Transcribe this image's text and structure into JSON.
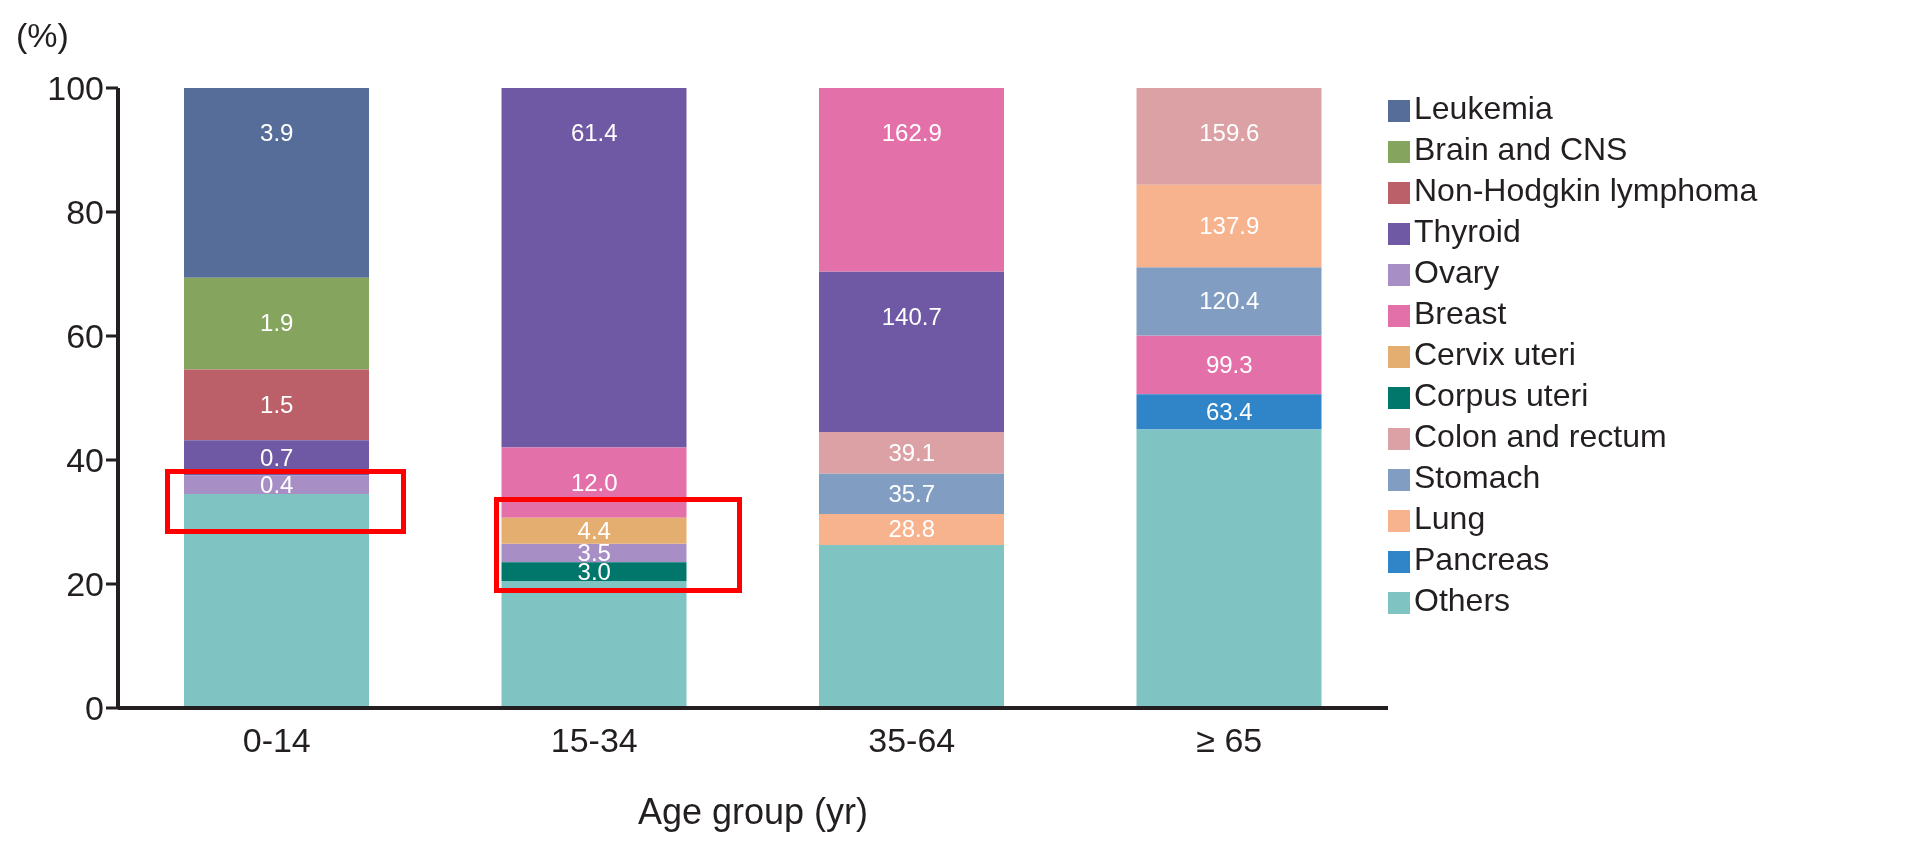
{
  "chart_data": {
    "type": "bar",
    "ylabel": "(%)",
    "xlabel": "Age group (yr)",
    "categories": [
      "0-14",
      "15-34",
      "35-64",
      "≥ 65"
    ],
    "ylim": [
      0,
      100
    ],
    "yticks": [
      0,
      20,
      40,
      60,
      80,
      100
    ],
    "grid": false,
    "legend": "right",
    "series": [
      {
        "name": "Leukemia",
        "color": "#566d9a",
        "values": [
          30.6,
          null,
          null,
          null
        ],
        "base": [
          69.4,
          null,
          null,
          null
        ]
      },
      {
        "name": "Brain and CNS",
        "color": "#85a55e",
        "values": [
          14.8,
          null,
          null,
          null
        ],
        "base": [
          54.6,
          null,
          null,
          null
        ]
      },
      {
        "name": "Non-Hodgkin lymphoma",
        "color": "#bb6068",
        "values": [
          11.4,
          null,
          null,
          null
        ],
        "base": [
          43.2,
          null,
          null,
          null
        ]
      },
      {
        "name": "Thyroid",
        "color": "#7059a4",
        "values": [
          5.7,
          58.0,
          25.9,
          null
        ],
        "base": [
          37.5,
          42.0,
          44.5,
          null
        ]
      },
      {
        "name": "Ovary",
        "color": "#a78fc5",
        "values": [
          3.0,
          3.0,
          null,
          null
        ],
        "base": [
          34.5,
          23.5,
          null,
          null
        ]
      },
      {
        "name": "Breast",
        "color": "#e470aa",
        "values": [
          null,
          11.3,
          29.6,
          9.5
        ],
        "base": [
          null,
          30.7,
          70.4,
          50.6
        ]
      },
      {
        "name": "Cervix uteri",
        "color": "#e4ae70",
        "values": [
          null,
          4.2,
          null,
          null
        ],
        "base": [
          null,
          26.5,
          null,
          null
        ]
      },
      {
        "name": "Corpus uteri",
        "color": "#00776a",
        "values": [
          null,
          3.0,
          null,
          null
        ],
        "base": [
          null,
          20.5,
          null,
          null
        ]
      },
      {
        "name": "Colon and rectum",
        "color": "#dba1a4",
        "values": [
          null,
          null,
          6.7,
          15.6
        ],
        "base": [
          null,
          null,
          37.8,
          84.4
        ]
      },
      {
        "name": "Stomach",
        "color": "#819ec2",
        "values": [
          null,
          null,
          6.5,
          11.0
        ],
        "base": [
          null,
          null,
          31.3,
          60.1
        ]
      },
      {
        "name": "Lung",
        "color": "#f6b38d",
        "values": [
          null,
          null,
          5.0,
          13.3
        ],
        "base": [
          null,
          null,
          26.3,
          71.1
        ]
      },
      {
        "name": "Pancreas",
        "color": "#2f85c7",
        "values": [
          null,
          null,
          null,
          5.7
        ],
        "base": [
          null,
          null,
          null,
          44.9
        ]
      },
      {
        "name": "Others",
        "color": "#7fc3c2",
        "values": [
          34.5,
          20.5,
          26.3,
          44.9
        ],
        "base": [
          0,
          0,
          0,
          0
        ]
      }
    ],
    "annotations": [
      {
        "text": "3.9",
        "x": "0-14",
        "y": 100
      },
      {
        "text": "1.9",
        "x": "0-14",
        "y": 69.4
      },
      {
        "text": "1.5",
        "x": "0-14",
        "y": 54.6
      },
      {
        "text": "0.7",
        "x": "0-14",
        "y": 43.2
      },
      {
        "text": "0.4",
        "x": "0-14",
        "y": 37.5
      },
      {
        "text": "61.4",
        "x": "15-34",
        "y": 100
      },
      {
        "text": "12.0",
        "x": "15-34",
        "y": 42.0
      },
      {
        "text": "4.4",
        "x": "15-34",
        "y": 30.7
      },
      {
        "text": "3.5",
        "x": "15-34",
        "y": 26.5
      },
      {
        "text": "3.0",
        "x": "15-34",
        "y": 23.5
      },
      {
        "text": "162.9",
        "x": "35-64",
        "y": 100
      },
      {
        "text": "140.7",
        "x": "35-64",
        "y": 70.4
      },
      {
        "text": "39.1",
        "x": "35-64",
        "y": 44.5
      },
      {
        "text": "35.7",
        "x": "35-64",
        "y": 37.8
      },
      {
        "text": "28.8",
        "x": "35-64",
        "y": 31.3
      },
      {
        "text": "159.6",
        "x": "≥ 65",
        "y": 100
      },
      {
        "text": "137.9",
        "x": "≥ 65",
        "y": 84.4
      },
      {
        "text": "120.4",
        "x": "≥ 65",
        "y": 71.1
      },
      {
        "text": "99.3",
        "x": "≥ 65",
        "y": 60.1
      },
      {
        "text": "63.4",
        "x": "≥ 65",
        "y": 50.6
      }
    ]
  }
}
